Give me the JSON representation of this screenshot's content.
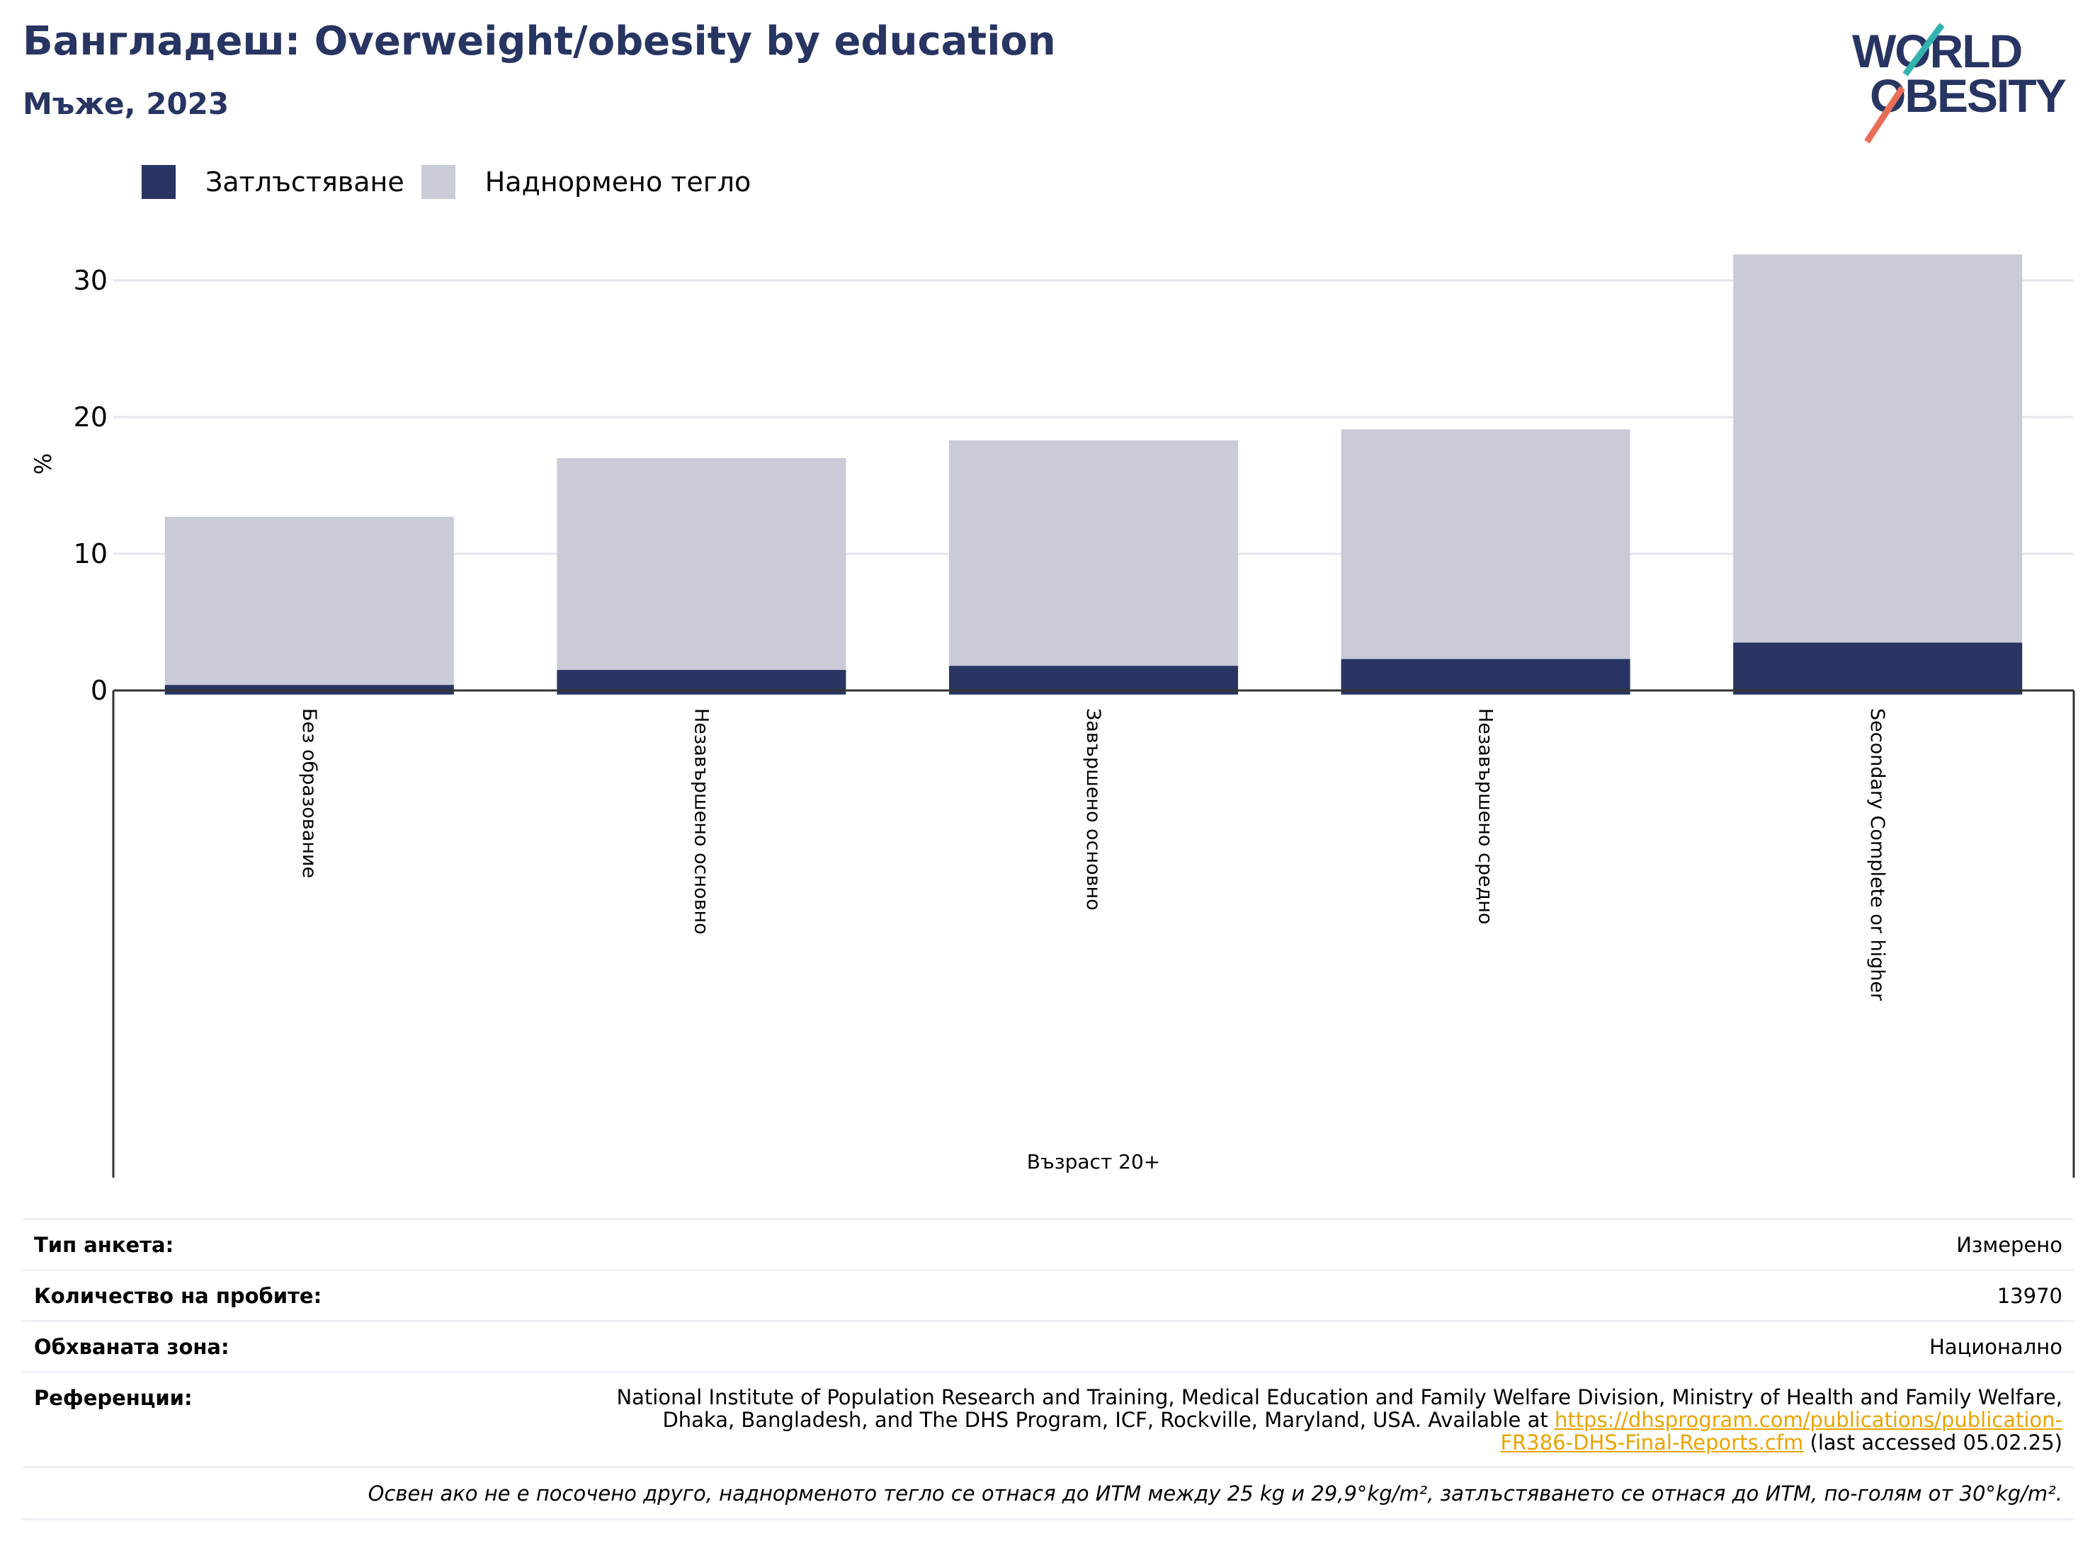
{
  "header": {
    "title": "Бангладеш: Overweight/obesity by education",
    "subtitle": "Мъже, 2023"
  },
  "logo": {
    "line1": "WORLD",
    "line2": "OBESITY",
    "icon": "world-obesity-logo"
  },
  "legend": [
    {
      "label": "Затлъстяване",
      "color": "#283462"
    },
    {
      "label": "Наднормено тегло",
      "color": "#c9cbd6"
    }
  ],
  "chart_data": {
    "type": "bar",
    "stacked": false,
    "overlay": true,
    "categories": [
      "Без образование",
      "Незавършено основно",
      "Завършено основно",
      "Незавършено средно",
      "Secondary Complete or higher"
    ],
    "series": [
      {
        "name": "Наднормено тегло",
        "color": "#c9cbd6",
        "values": [
          12.7,
          17.0,
          18.3,
          19.1,
          31.9
        ]
      },
      {
        "name": "Затлъстяване",
        "color": "#283462",
        "values": [
          0.4,
          1.5,
          1.8,
          2.3,
          3.5
        ]
      }
    ],
    "ylabel": "%",
    "xlabel": "Възраст 20+",
    "yticks": [
      0,
      10,
      20,
      30
    ],
    "ylim": [
      -0.3,
      34
    ],
    "grid": true
  },
  "info": {
    "survey_type_label": "Тип анкета:",
    "survey_type_value": "Измерено",
    "sample_size_label": "Количество на пробите:",
    "sample_size_value": "13970",
    "area_label": "Обхваната зона:",
    "area_value": "Национално",
    "references_label": "Референции:",
    "references_text_1": "National Institute of Population Research and Training, Medical Education and Family Welfare Division, Ministry of Health and Family Welfare,",
    "references_text_2": "Dhaka, Bangladesh, and The DHS Program, ICF, Rockville, Maryland, USA. Available at",
    "references_link_1": "https://dhsprogram.com/publications/publication-",
    "references_link_2": "FR386-DHS-Final-Reports.cfm",
    "references_suffix": "(last accessed 05.02.25)",
    "note": "Освен ако не е посочено друго, наднорменото тегло се отнася до ИТМ между 25 kg и 29,9°kg/m², затлъстяването се отнася до ИТМ, по-голям от 30°kg/m²."
  }
}
